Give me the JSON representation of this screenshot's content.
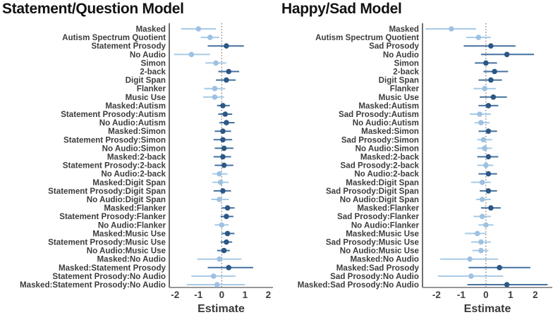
{
  "colors": {
    "light_point": "#9FC1E1",
    "light_line": "#A6CBE8",
    "dark_point": "#2C5785",
    "dark_line": "#44719F",
    "y_axis_line": "#404040",
    "x_axis_line": "#8A8A8A",
    "reference_line": "#555555",
    "label_text": "#3d3d3d",
    "title_text": "#111111"
  },
  "chart_data": [
    {
      "type": "scatter",
      "variant": "forest-coefficient-plot",
      "title": "Statement/Question Model",
      "xlabel": "Estimate",
      "xlim": [
        -2.25,
        2.2
      ],
      "xticks": [
        -2,
        -1,
        0,
        1,
        2
      ],
      "reference_line_x": 0,
      "grid": false,
      "legend": "none",
      "rows": [
        {
          "label": "Masked",
          "estimate": -1.0,
          "ci_low": -1.75,
          "ci_high": -0.25,
          "color": "light"
        },
        {
          "label": "Autism Spectrum Quotient",
          "estimate": -0.5,
          "ci_low": -0.9,
          "ci_high": -0.1,
          "color": "light"
        },
        {
          "label": "Statement Prosody",
          "estimate": 0.2,
          "ci_low": -0.6,
          "ci_high": 0.95,
          "color": "dark"
        },
        {
          "label": "No Audio",
          "estimate": -1.3,
          "ci_low": -2.05,
          "ci_high": -0.5,
          "color": "light"
        },
        {
          "label": "Simon",
          "estimate": -0.25,
          "ci_low": -0.7,
          "ci_high": 0.2,
          "color": "light"
        },
        {
          "label": "2-back",
          "estimate": 0.3,
          "ci_low": -0.15,
          "ci_high": 0.75,
          "color": "dark"
        },
        {
          "label": "Digit Span",
          "estimate": 0.2,
          "ci_low": -0.25,
          "ci_high": 0.6,
          "color": "dark"
        },
        {
          "label": "Flanker",
          "estimate": -0.3,
          "ci_low": -0.75,
          "ci_high": 0.15,
          "color": "light"
        },
        {
          "label": "Music Use",
          "estimate": -0.3,
          "ci_low": -0.8,
          "ci_high": 0.1,
          "color": "light"
        },
        {
          "label": "Masked:Autism",
          "estimate": 0.05,
          "ci_low": -0.2,
          "ci_high": 0.35,
          "color": "dark"
        },
        {
          "label": "Statement Prosody:Autism",
          "estimate": 0.15,
          "ci_low": -0.15,
          "ci_high": 0.45,
          "color": "dark"
        },
        {
          "label": "No Audio:Autism",
          "estimate": 0.2,
          "ci_low": -0.1,
          "ci_high": 0.55,
          "color": "dark"
        },
        {
          "label": "Masked:Simon",
          "estimate": 0.05,
          "ci_low": -0.3,
          "ci_high": 0.4,
          "color": "dark"
        },
        {
          "label": "Statement Prosody:Simon",
          "estimate": 0.05,
          "ci_low": -0.35,
          "ci_high": 0.45,
          "color": "dark"
        },
        {
          "label": "No Audio:Simon",
          "estimate": 0.1,
          "ci_low": -0.3,
          "ci_high": 0.5,
          "color": "dark"
        },
        {
          "label": "Masked:2-back",
          "estimate": 0.05,
          "ci_low": -0.35,
          "ci_high": 0.4,
          "color": "dark"
        },
        {
          "label": "Statement Prosody:2-back",
          "estimate": 0.1,
          "ci_low": -0.3,
          "ci_high": 0.5,
          "color": "dark"
        },
        {
          "label": "No Audio:2-back",
          "estimate": -0.1,
          "ci_low": -0.4,
          "ci_high": 0.25,
          "color": "light"
        },
        {
          "label": "Masked:Digit Span",
          "estimate": -0.05,
          "ci_low": -0.4,
          "ci_high": 0.3,
          "color": "light"
        },
        {
          "label": "Statement Prosody:Digit Span",
          "estimate": 0.05,
          "ci_low": -0.35,
          "ci_high": 0.4,
          "color": "dark"
        },
        {
          "label": "No Audio:Digit Span",
          "estimate": -0.1,
          "ci_low": -0.45,
          "ci_high": 0.3,
          "color": "light"
        },
        {
          "label": "Masked:Flanker",
          "estimate": 0.25,
          "ci_low": 0.0,
          "ci_high": 0.55,
          "color": "dark"
        },
        {
          "label": "Statement Prosody:Flanker",
          "estimate": 0.2,
          "ci_low": -0.05,
          "ci_high": 0.5,
          "color": "dark"
        },
        {
          "label": "No Audio:Flanker",
          "estimate": 0.0,
          "ci_low": -0.3,
          "ci_high": 0.3,
          "color": "light"
        },
        {
          "label": "Masked:Music Use",
          "estimate": 0.25,
          "ci_low": 0.0,
          "ci_high": 0.55,
          "color": "dark"
        },
        {
          "label": "Statement Prosody:Music Use",
          "estimate": 0.2,
          "ci_low": -0.05,
          "ci_high": 0.45,
          "color": "dark"
        },
        {
          "label": "No Audio:Music Use",
          "estimate": 0.1,
          "ci_low": -0.2,
          "ci_high": 0.35,
          "color": "dark"
        },
        {
          "label": "Masked:No Audio",
          "estimate": -0.1,
          "ci_low": -1.05,
          "ci_high": 0.85,
          "color": "light"
        },
        {
          "label": "Masked:Statement Prosody",
          "estimate": 0.3,
          "ci_low": -0.6,
          "ci_high": 1.35,
          "color": "dark"
        },
        {
          "label": "Statement Prosody:No Audio",
          "estimate": -0.35,
          "ci_low": -1.3,
          "ci_high": 0.6,
          "color": "light"
        },
        {
          "label": "Masked:Statement Prosody:No Audio",
          "estimate": -0.2,
          "ci_low": -1.5,
          "ci_high": 1.0,
          "color": "light"
        }
      ]
    },
    {
      "type": "scatter",
      "variant": "forest-coefficient-plot",
      "title": "Happy/Sad Model",
      "xlabel": "Estimate",
      "xlim": [
        -2.57,
        2.69
      ],
      "xticks": [
        -2,
        -1,
        0,
        1,
        2
      ],
      "reference_line_x": 0,
      "grid": false,
      "legend": "none",
      "rows": [
        {
          "label": "Masked",
          "estimate": -1.4,
          "ci_low": -2.45,
          "ci_high": -0.4,
          "color": "light"
        },
        {
          "label": "Autism Spectrum Quotient",
          "estimate": -0.3,
          "ci_low": -0.8,
          "ci_high": 0.2,
          "color": "light"
        },
        {
          "label": "Sad Prosody",
          "estimate": 0.2,
          "ci_low": -0.9,
          "ci_high": 1.2,
          "color": "dark"
        },
        {
          "label": "No Audio",
          "estimate": 0.85,
          "ci_low": -0.2,
          "ci_high": 1.95,
          "color": "dark"
        },
        {
          "label": "Simon",
          "estimate": 0.0,
          "ci_low": -0.45,
          "ci_high": 0.45,
          "color": "dark"
        },
        {
          "label": "2-back",
          "estimate": 0.35,
          "ci_low": -0.1,
          "ci_high": 0.9,
          "color": "dark"
        },
        {
          "label": "Digit Span",
          "estimate": 0.2,
          "ci_low": -0.3,
          "ci_high": 0.65,
          "color": "dark"
        },
        {
          "label": "Flanker",
          "estimate": -0.05,
          "ci_low": -0.5,
          "ci_high": 0.4,
          "color": "light"
        },
        {
          "label": "Music Use",
          "estimate": 0.3,
          "ci_low": -0.25,
          "ci_high": 0.85,
          "color": "dark"
        },
        {
          "label": "Masked:Autism",
          "estimate": 0.1,
          "ci_low": -0.3,
          "ci_high": 0.5,
          "color": "dark"
        },
        {
          "label": "Sad Prosody:Autism",
          "estimate": -0.25,
          "ci_low": -0.65,
          "ci_high": 0.2,
          "color": "light"
        },
        {
          "label": "No Audio:Autism",
          "estimate": -0.2,
          "ci_low": -0.45,
          "ci_high": 0.15,
          "color": "light"
        },
        {
          "label": "Masked:Simon",
          "estimate": 0.1,
          "ci_low": -0.3,
          "ci_high": 0.45,
          "color": "dark"
        },
        {
          "label": "Sad Prosody:Simon",
          "estimate": -0.1,
          "ci_low": -0.35,
          "ci_high": 0.25,
          "color": "light"
        },
        {
          "label": "No Audio:Simon",
          "estimate": -0.05,
          "ci_low": -0.35,
          "ci_high": 0.25,
          "color": "light"
        },
        {
          "label": "Masked:2-back",
          "estimate": 0.1,
          "ci_low": -0.35,
          "ci_high": 0.5,
          "color": "dark"
        },
        {
          "label": "Sad Prosody:2-back",
          "estimate": 0.0,
          "ci_low": -0.35,
          "ci_high": 0.3,
          "color": "light"
        },
        {
          "label": "No Audio:2-back",
          "estimate": 0.1,
          "ci_low": -0.3,
          "ci_high": 0.45,
          "color": "dark"
        },
        {
          "label": "Masked:Digit Span",
          "estimate": -0.15,
          "ci_low": -0.6,
          "ci_high": 0.2,
          "color": "light"
        },
        {
          "label": "Sad Prosody:Digit Span",
          "estimate": 0.1,
          "ci_low": -0.25,
          "ci_high": 0.45,
          "color": "dark"
        },
        {
          "label": "No Audio:Digit Span",
          "estimate": -0.15,
          "ci_low": -0.4,
          "ci_high": 0.2,
          "color": "light"
        },
        {
          "label": "Masked:Flanker",
          "estimate": 0.2,
          "ci_low": -0.2,
          "ci_high": 0.6,
          "color": "dark"
        },
        {
          "label": "Sad Prosody:Flanker",
          "estimate": -0.15,
          "ci_low": -0.5,
          "ci_high": 0.2,
          "color": "light"
        },
        {
          "label": "No Audio:Flanker",
          "estimate": 0.0,
          "ci_low": -0.3,
          "ci_high": 0.3,
          "color": "light"
        },
        {
          "label": "Masked:Music Use",
          "estimate": -0.35,
          "ci_low": -0.85,
          "ci_high": 0.0,
          "color": "light"
        },
        {
          "label": "Sad Prosody:Music Use",
          "estimate": -0.2,
          "ci_low": -0.6,
          "ci_high": 0.2,
          "color": "light"
        },
        {
          "label": "No Audio:Music Use",
          "estimate": -0.2,
          "ci_low": -0.55,
          "ci_high": 0.1,
          "color": "light"
        },
        {
          "label": "Masked:No Audio",
          "estimate": -0.65,
          "ci_low": -1.85,
          "ci_high": 0.5,
          "color": "light"
        },
        {
          "label": "Masked:Sad Prosody",
          "estimate": 0.55,
          "ci_low": -0.7,
          "ci_high": 1.8,
          "color": "dark"
        },
        {
          "label": "Sad Prosody:No Audio",
          "estimate": -0.6,
          "ci_low": -1.95,
          "ci_high": 0.7,
          "color": "light"
        },
        {
          "label": "Masked:Sad Prosody:No Audio",
          "estimate": 0.85,
          "ci_low": -0.75,
          "ci_high": 2.5,
          "color": "dark"
        }
      ]
    }
  ]
}
